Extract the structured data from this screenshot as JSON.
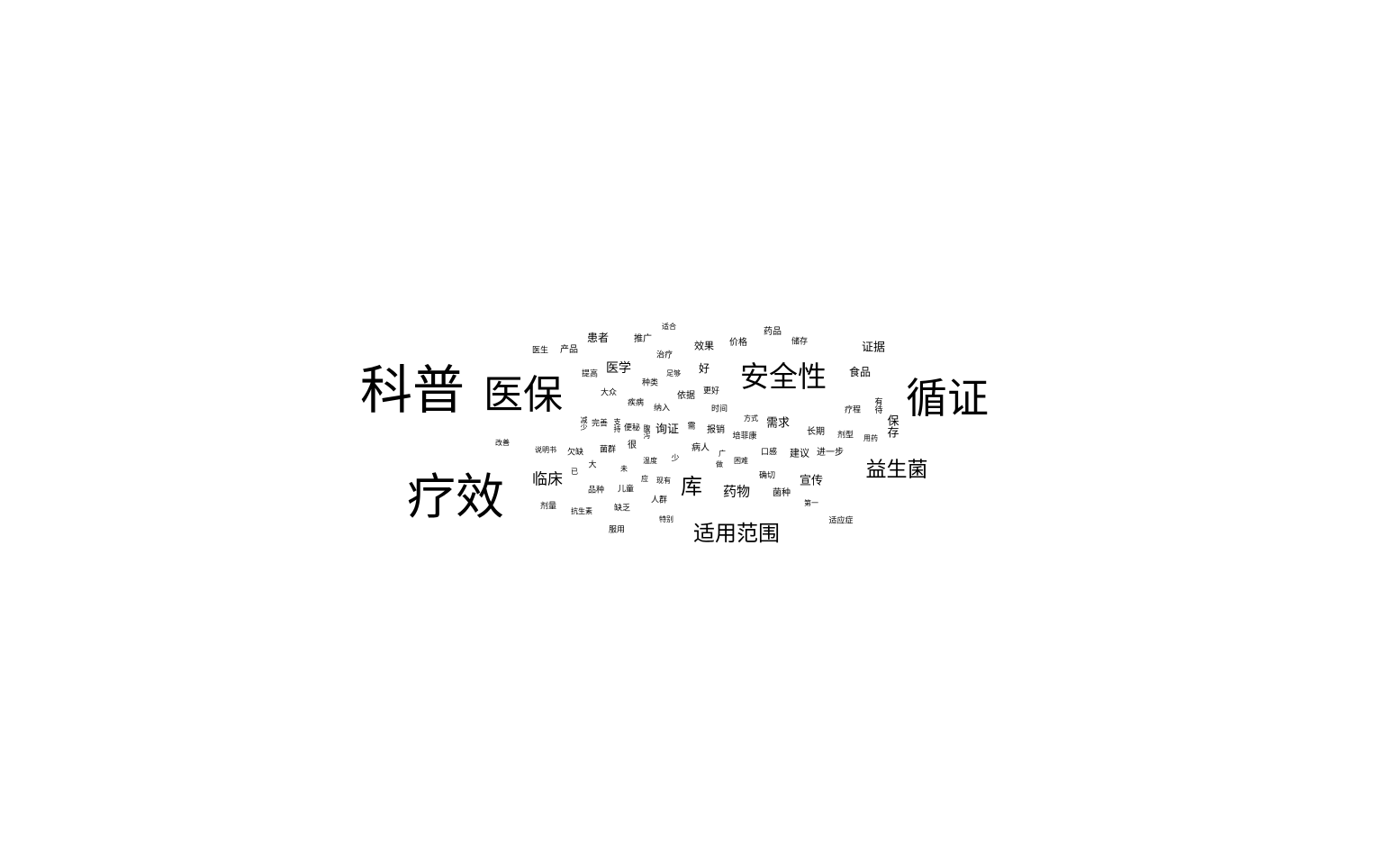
{
  "word_cloud": {
    "color": "#000000",
    "background": "#ffffff",
    "words": [
      "科普",
      "医保",
      "循证",
      "疗效",
      "安全性",
      "益生菌",
      "适用范围",
      "库",
      "临床",
      "药物",
      "需求",
      "宣传",
      "医学",
      "询证",
      "证据",
      "食品",
      "保存",
      "患者",
      "效果",
      "价格",
      "药品",
      "推广",
      "产品",
      "医生",
      "适合",
      "储存",
      "治疗",
      "好",
      "提高",
      "足够",
      "种类",
      "大众",
      "依据",
      "更好",
      "疾病",
      "纳入",
      "时间",
      "疗程",
      "有待",
      "方式",
      "需",
      "报销",
      "培菲康",
      "长期",
      "剂型",
      "用药",
      "完善",
      "便秘",
      "支持",
      "减少",
      "腹泻",
      "改善",
      "说明书",
      "欠缺",
      "菌群",
      "很",
      "病人",
      "口感",
      "建议",
      "进一步",
      "广",
      "做",
      "困难",
      "温度",
      "少",
      "大",
      "未",
      "已",
      "确切",
      "应",
      "现有",
      "品种",
      "儿童",
      "菌种",
      "人群",
      "第一",
      "剂量",
      "抗生素",
      "缺乏",
      "特别",
      "适应症",
      "服用"
    ]
  }
}
